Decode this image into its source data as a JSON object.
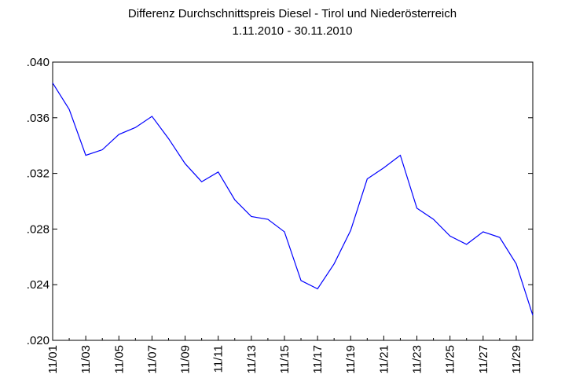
{
  "chart_data": {
    "type": "line",
    "title": "Differenz Durchschnittspreis Diesel - Tirol und Niederösterreich",
    "subtitle": "1.11.2010 - 30.11.2010",
    "categories": [
      "11/01",
      null,
      "11/03",
      null,
      "11/05",
      null,
      "11/07",
      null,
      "11/09",
      null,
      "11/11",
      null,
      "11/13",
      null,
      "11/15",
      null,
      "11/17",
      null,
      "11/19",
      null,
      "11/21",
      null,
      "11/23",
      null,
      "11/25",
      null,
      "11/27",
      null,
      "11/29",
      null
    ],
    "series": [
      {
        "name": "Differenz",
        "color": "#0000ff",
        "values": [
          0.0385,
          0.0366,
          0.0333,
          0.0337,
          0.0348,
          0.0353,
          0.0361,
          0.0345,
          0.0327,
          0.0314,
          0.0321,
          0.0301,
          0.0289,
          0.0287,
          0.0278,
          0.0243,
          0.0237,
          0.0255,
          0.0279,
          0.0316,
          0.0324,
          0.0333,
          0.0295,
          0.0287,
          0.0275,
          0.0269,
          0.0278,
          0.0274,
          0.0255,
          0.0218
        ]
      }
    ],
    "ylim": [
      0.02,
      0.04
    ],
    "yticks": [
      {
        "value": 0.02,
        "label": ".020"
      },
      {
        "value": 0.024,
        "label": ".024"
      },
      {
        "value": 0.028,
        "label": ".028"
      },
      {
        "value": 0.032,
        "label": ".032"
      },
      {
        "value": 0.036,
        "label": ".036"
      },
      {
        "value": 0.04,
        "label": ".040"
      }
    ],
    "grid": false
  }
}
